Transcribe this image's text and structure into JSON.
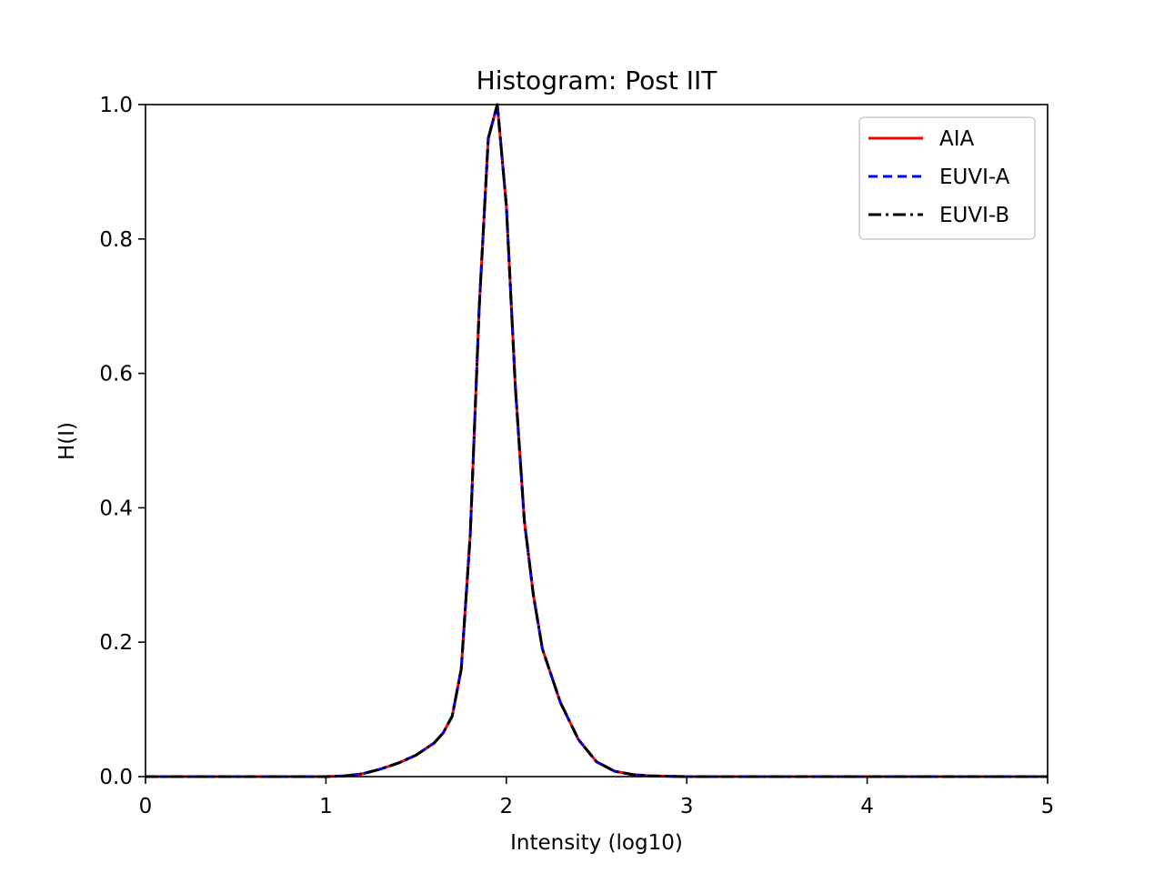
{
  "chart_data": {
    "type": "line",
    "title": "Histogram: Post IIT",
    "xlabel": "Intensity (log10)",
    "ylabel": "H(I)",
    "xlim": [
      0,
      5
    ],
    "ylim": [
      0,
      1
    ],
    "xticks": [
      "0",
      "1",
      "2",
      "3",
      "4",
      "5"
    ],
    "yticks": [
      "0.0",
      "0.2",
      "0.4",
      "0.6",
      "0.8",
      "1.0"
    ],
    "grid": false,
    "legend_position": "upper right",
    "x": [
      0.0,
      0.5,
      1.0,
      1.1,
      1.2,
      1.3,
      1.4,
      1.5,
      1.6,
      1.65,
      1.7,
      1.75,
      1.8,
      1.85,
      1.9,
      1.95,
      2.0,
      2.05,
      2.1,
      2.15,
      2.2,
      2.3,
      2.4,
      2.5,
      2.6,
      2.7,
      2.8,
      3.0,
      3.5,
      4.0,
      5.0
    ],
    "series": [
      {
        "name": "AIA",
        "color": "#ff0000",
        "style": "solid",
        "values": [
          0.0,
          0.0,
          0.0,
          0.001,
          0.004,
          0.011,
          0.02,
          0.032,
          0.05,
          0.065,
          0.09,
          0.16,
          0.36,
          0.7,
          0.95,
          1.0,
          0.85,
          0.58,
          0.38,
          0.27,
          0.19,
          0.11,
          0.055,
          0.022,
          0.008,
          0.003,
          0.001,
          0.0,
          0.0,
          0.0,
          0.0
        ]
      },
      {
        "name": "EUVI-A",
        "color": "#0000ff",
        "style": "dashed",
        "values": [
          0.0,
          0.0,
          0.0,
          0.001,
          0.004,
          0.011,
          0.02,
          0.032,
          0.05,
          0.065,
          0.09,
          0.16,
          0.36,
          0.7,
          0.95,
          1.0,
          0.85,
          0.58,
          0.38,
          0.27,
          0.19,
          0.11,
          0.055,
          0.022,
          0.008,
          0.003,
          0.001,
          0.0,
          0.0,
          0.0,
          0.0
        ]
      },
      {
        "name": "EUVI-B",
        "color": "#000000",
        "style": "dashdot",
        "values": [
          0.0,
          0.0,
          0.0,
          0.001,
          0.004,
          0.011,
          0.02,
          0.032,
          0.05,
          0.065,
          0.09,
          0.16,
          0.36,
          0.7,
          0.95,
          1.0,
          0.85,
          0.58,
          0.38,
          0.27,
          0.19,
          0.11,
          0.055,
          0.022,
          0.008,
          0.003,
          0.001,
          0.0,
          0.0,
          0.0,
          0.0
        ]
      }
    ]
  }
}
